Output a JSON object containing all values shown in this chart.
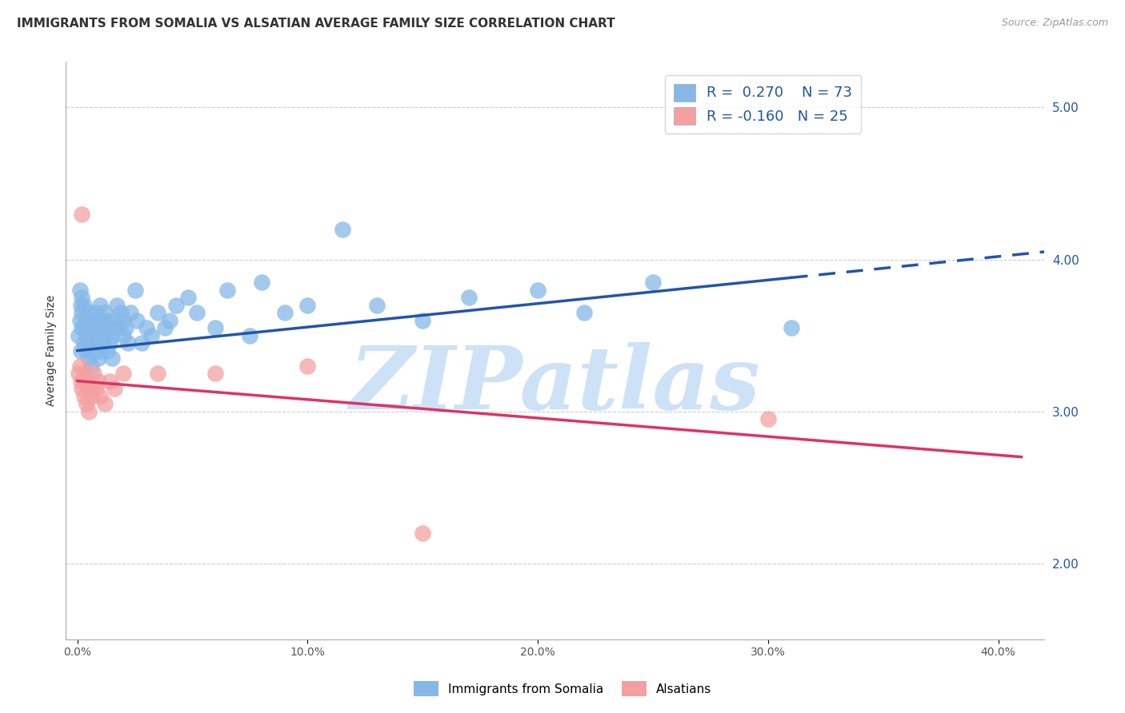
{
  "title": "IMMIGRANTS FROM SOMALIA VS ALSATIAN AVERAGE FAMILY SIZE CORRELATION CHART",
  "source": "Source: ZipAtlas.com",
  "ylabel": "Average Family Size",
  "xlabel_ticks": [
    "0.0%",
    "10.0%",
    "20.0%",
    "30.0%",
    "40.0%"
  ],
  "xlabel_values": [
    0.0,
    0.1,
    0.2,
    0.3,
    0.4
  ],
  "right_yticks": [
    2.0,
    3.0,
    4.0,
    5.0
  ],
  "ylim": [
    1.5,
    5.3
  ],
  "xlim": [
    -0.005,
    0.42
  ],
  "r_somalia": "0.270",
  "n_somalia": 73,
  "r_alsatian": "-0.160",
  "n_alsatian": 25,
  "blue_color": "#85b8e8",
  "pink_color": "#f4a0a0",
  "blue_line_color": "#2255aa",
  "pink_line_color": "#dd3366",
  "somalia_x": [
    0.0005,
    0.001,
    0.001,
    0.0015,
    0.0015,
    0.002,
    0.002,
    0.002,
    0.003,
    0.003,
    0.003,
    0.004,
    0.004,
    0.004,
    0.005,
    0.005,
    0.005,
    0.006,
    0.006,
    0.006,
    0.007,
    0.007,
    0.008,
    0.008,
    0.009,
    0.009,
    0.01,
    0.01,
    0.01,
    0.011,
    0.011,
    0.012,
    0.012,
    0.013,
    0.013,
    0.014,
    0.014,
    0.015,
    0.015,
    0.016,
    0.017,
    0.018,
    0.019,
    0.02,
    0.02,
    0.021,
    0.022,
    0.023,
    0.025,
    0.026,
    0.028,
    0.03,
    0.032,
    0.035,
    0.038,
    0.04,
    0.043,
    0.048,
    0.052,
    0.06,
    0.065,
    0.075,
    0.08,
    0.09,
    0.1,
    0.115,
    0.13,
    0.15,
    0.17,
    0.2,
    0.22,
    0.25,
    0.31
  ],
  "somalia_y": [
    3.5,
    3.6,
    3.8,
    3.4,
    3.7,
    3.55,
    3.65,
    3.75,
    3.45,
    3.55,
    3.7,
    3.4,
    3.6,
    3.5,
    3.35,
    3.45,
    3.65,
    3.3,
    3.5,
    3.6,
    3.4,
    3.55,
    3.45,
    3.65,
    3.35,
    3.55,
    3.4,
    3.6,
    3.7,
    3.45,
    3.55,
    3.5,
    3.65,
    3.4,
    3.6,
    3.45,
    3.55,
    3.35,
    3.5,
    3.6,
    3.7,
    3.55,
    3.65,
    3.5,
    3.6,
    3.55,
    3.45,
    3.65,
    3.8,
    3.6,
    3.45,
    3.55,
    3.5,
    3.65,
    3.55,
    3.6,
    3.7,
    3.75,
    3.65,
    3.55,
    3.8,
    3.5,
    3.85,
    3.65,
    3.7,
    4.2,
    3.7,
    3.6,
    3.75,
    3.8,
    3.65,
    3.85,
    3.55
  ],
  "alsatian_x": [
    0.0005,
    0.001,
    0.0015,
    0.002,
    0.002,
    0.003,
    0.003,
    0.004,
    0.004,
    0.005,
    0.005,
    0.006,
    0.007,
    0.008,
    0.009,
    0.01,
    0.012,
    0.014,
    0.016,
    0.02,
    0.035,
    0.06,
    0.1,
    0.15,
    0.3
  ],
  "alsatian_y": [
    3.25,
    3.3,
    3.2,
    4.3,
    3.15,
    3.25,
    3.1,
    3.2,
    3.05,
    3.15,
    3.0,
    3.1,
    3.25,
    3.15,
    3.2,
    3.1,
    3.05,
    3.2,
    3.15,
    3.25,
    3.25,
    3.25,
    3.3,
    2.2,
    2.95
  ],
  "watermark": "ZIPatlas",
  "watermark_color": "#c5ddf5",
  "legend_label_somalia": "Immigrants from Somalia",
  "legend_label_alsatian": "Alsatians",
  "title_fontsize": 11,
  "label_fontsize": 10
}
